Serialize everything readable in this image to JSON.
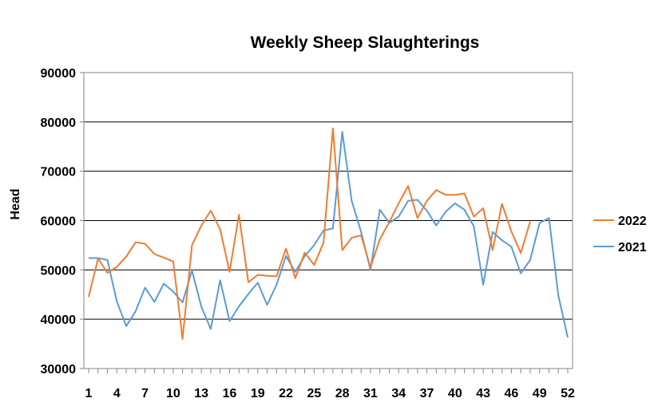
{
  "chart_data": {
    "type": "line",
    "title": "Weekly Sheep Slaughterings",
    "ylabel": "Head",
    "xlabel": "",
    "ylim": [
      30000,
      90000
    ],
    "yticks": [
      30000,
      40000,
      50000,
      60000,
      70000,
      80000,
      90000
    ],
    "xlim": [
      1,
      52
    ],
    "xticks": [
      1,
      4,
      7,
      10,
      13,
      16,
      19,
      22,
      25,
      28,
      31,
      34,
      37,
      40,
      43,
      46,
      49,
      52
    ],
    "grid": "horizontal",
    "legend": "right",
    "series": [
      {
        "name": "2022",
        "color": "#ED7D31",
        "x": [
          1,
          2,
          3,
          4,
          5,
          6,
          7,
          8,
          9,
          10,
          11,
          12,
          13,
          14,
          15,
          16,
          17,
          18,
          19,
          20,
          21,
          22,
          23,
          24,
          25,
          26,
          27,
          28,
          29,
          30,
          31,
          32,
          33,
          34,
          35,
          36,
          37,
          38,
          39,
          40,
          41,
          42,
          43,
          44,
          45,
          46,
          47,
          48
        ],
        "values": [
          44500,
          52300,
          49400,
          50600,
          52700,
          55600,
          55300,
          53200,
          52500,
          51700,
          36000,
          55000,
          59000,
          62000,
          58200,
          49600,
          61200,
          47500,
          49000,
          48800,
          48700,
          54300,
          48300,
          53500,
          51000,
          55500,
          78700,
          54000,
          56500,
          57000,
          50500,
          56200,
          59700,
          63500,
          67000,
          60500,
          64000,
          66200,
          65200,
          65200,
          65500,
          60800,
          62500,
          54000,
          63400,
          57800,
          53400,
          59800
        ]
      },
      {
        "name": "2021",
        "color": "#5B9BD5",
        "x": [
          1,
          2,
          3,
          4,
          5,
          6,
          7,
          8,
          9,
          10,
          11,
          12,
          13,
          14,
          15,
          16,
          17,
          18,
          19,
          20,
          21,
          22,
          23,
          24,
          25,
          26,
          27,
          28,
          29,
          30,
          31,
          32,
          33,
          34,
          35,
          36,
          37,
          38,
          39,
          40,
          41,
          42,
          43,
          44,
          45,
          46,
          47,
          48,
          49,
          50,
          51,
          52
        ],
        "values": [
          52400,
          52400,
          52000,
          43600,
          38600,
          41600,
          46400,
          43500,
          47200,
          45600,
          43400,
          49900,
          42500,
          38000,
          47900,
          39600,
          42600,
          45100,
          47400,
          42900,
          47000,
          52800,
          49600,
          52800,
          55000,
          58000,
          58400,
          78000,
          64000,
          57700,
          50000,
          62200,
          59500,
          60800,
          64000,
          64200,
          62000,
          59000,
          61800,
          63500,
          62200,
          58800,
          47000,
          57700,
          56000,
          54700,
          49300,
          52000,
          59500,
          60500,
          44800,
          36300
        ]
      }
    ]
  }
}
